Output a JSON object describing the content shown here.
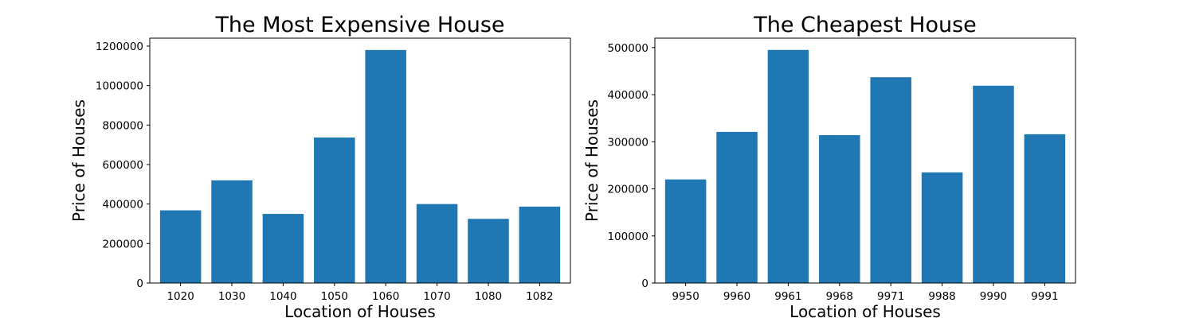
{
  "chart_data": [
    {
      "type": "bar",
      "title": "The Most Expensive House",
      "xlabel": "Location of Houses",
      "ylabel": "Price of Houses",
      "categories": [
        "1020",
        "1030",
        "1040",
        "1050",
        "1060",
        "1070",
        "1080",
        "1082"
      ],
      "values": [
        368000,
        520000,
        350000,
        737000,
        1180000,
        400000,
        325000,
        387000
      ],
      "ylim": [
        0,
        1240000
      ],
      "yticks": [
        0,
        200000,
        400000,
        600000,
        800000,
        1000000,
        1200000
      ],
      "color": "#1f77b4",
      "grid": false
    },
    {
      "type": "bar",
      "title": "The Cheapest House",
      "xlabel": "Location of Houses",
      "ylabel": "Price of Houses",
      "categories": [
        "9950",
        "9960",
        "9961",
        "9968",
        "9971",
        "9988",
        "9990",
        "9991"
      ],
      "values": [
        220000,
        321000,
        495000,
        314000,
        437000,
        235000,
        419000,
        316000
      ],
      "ylim": [
        0,
        520000
      ],
      "yticks": [
        0,
        100000,
        200000,
        300000,
        400000,
        500000
      ],
      "color": "#1f77b4",
      "grid": false
    }
  ]
}
